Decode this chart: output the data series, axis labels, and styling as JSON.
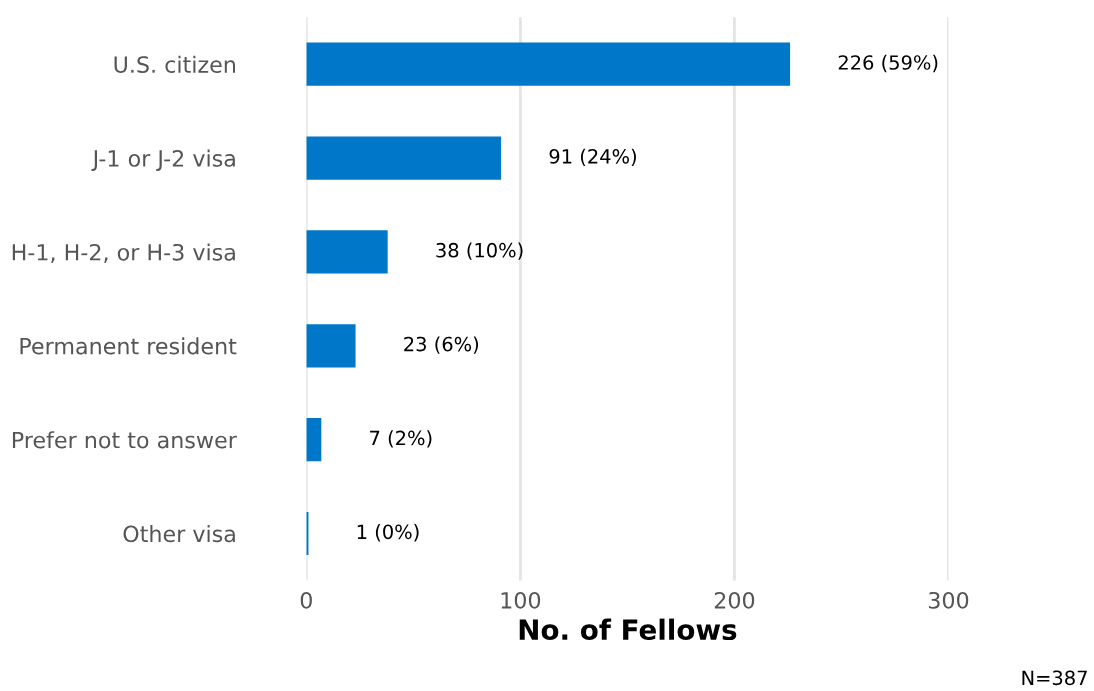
{
  "chart_data": {
    "type": "bar",
    "orientation": "horizontal",
    "categories": [
      "U.S. citizen",
      "J-1 or J-2 visa",
      "H-1, H-2, or H-3 visa",
      "Permanent resident",
      "Prefer not to answer",
      "Other visa"
    ],
    "values": [
      226,
      91,
      38,
      23,
      7,
      1
    ],
    "value_labels": [
      "226 (59%)",
      "91 (24%)",
      "38 (10%)",
      "23 (6%)",
      "7 (2%)",
      "1 (0%)"
    ],
    "color": "#0077c8",
    "xlabel": "No. of Fellows",
    "xlim": [
      0,
      300
    ],
    "xticks": [
      0,
      100,
      200,
      300
    ],
    "grid": "x",
    "legend": false,
    "annotations": [
      "N=387"
    ]
  }
}
